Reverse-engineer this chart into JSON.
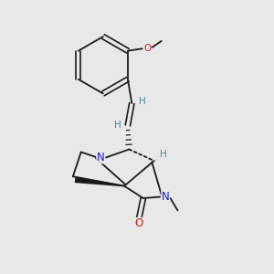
{
  "background_color": "#e8e8e8",
  "bond_color": "#1a1a1a",
  "N_color": "#1a1acc",
  "O_color": "#cc1a1a",
  "H_color": "#4a8a8a",
  "fig_size": [
    3.0,
    3.0
  ],
  "dpi": 100,
  "xlim": [
    0,
    10
  ],
  "ylim": [
    0,
    10
  ]
}
